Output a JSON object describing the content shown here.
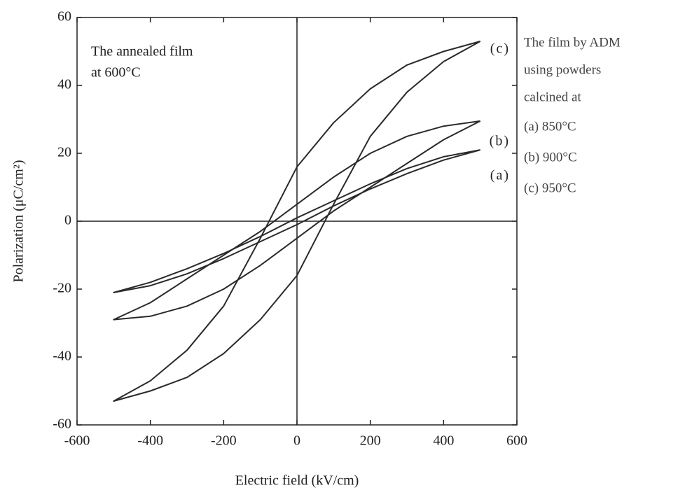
{
  "chart_data": {
    "type": "line",
    "x_label": "Electric field (kV/cm)",
    "y_label": "Polarization (μC/cm²)",
    "annotations": [
      "The annealed film",
      "at 600°C"
    ],
    "legend_text": [
      "The film by ADM",
      "using powders",
      "calcined at",
      "(a) 850°C",
      "(b) 900°C",
      "(c) 950°C"
    ],
    "x": [
      500,
      400,
      300,
      200,
      100,
      0,
      -100,
      -200,
      -300,
      -400,
      -500,
      -400,
      -300,
      -200,
      -100,
      0,
      100,
      200,
      300,
      400,
      500
    ],
    "series": [
      {
        "name": "(c)",
        "color": "#2a2a2a",
        "values": [
          53,
          50,
          46,
          39,
          29,
          16,
          -5,
          -25,
          -38,
          -47,
          -53,
          -50,
          -46,
          -39,
          -29,
          -16,
          5,
          25,
          38,
          47,
          53
        ]
      },
      {
        "name": "(b)",
        "color": "#2a2a2a",
        "values": [
          29.5,
          28,
          25,
          20,
          13,
          5,
          -3,
          -10,
          -17,
          -24,
          -29,
          -28,
          -25,
          -20,
          -13,
          -5,
          3,
          10,
          17,
          24,
          29.5
        ]
      },
      {
        "name": "(a)",
        "color": "#2a2a2a",
        "values": [
          21,
          19,
          15.5,
          11,
          6,
          1,
          -4.5,
          -9.5,
          -14,
          -18,
          -21,
          -19,
          -15.5,
          -11,
          -6,
          -1,
          4.5,
          9.5,
          14,
          18,
          21
        ]
      }
    ],
    "xlim": [
      -600,
      600
    ],
    "xticks": [
      -600,
      -400,
      -200,
      0,
      200,
      400,
      600
    ],
    "ylim": [
      -60,
      60
    ],
    "yticks": [
      -60,
      -40,
      -20,
      0,
      20,
      40,
      60
    ],
    "grid": false
  }
}
